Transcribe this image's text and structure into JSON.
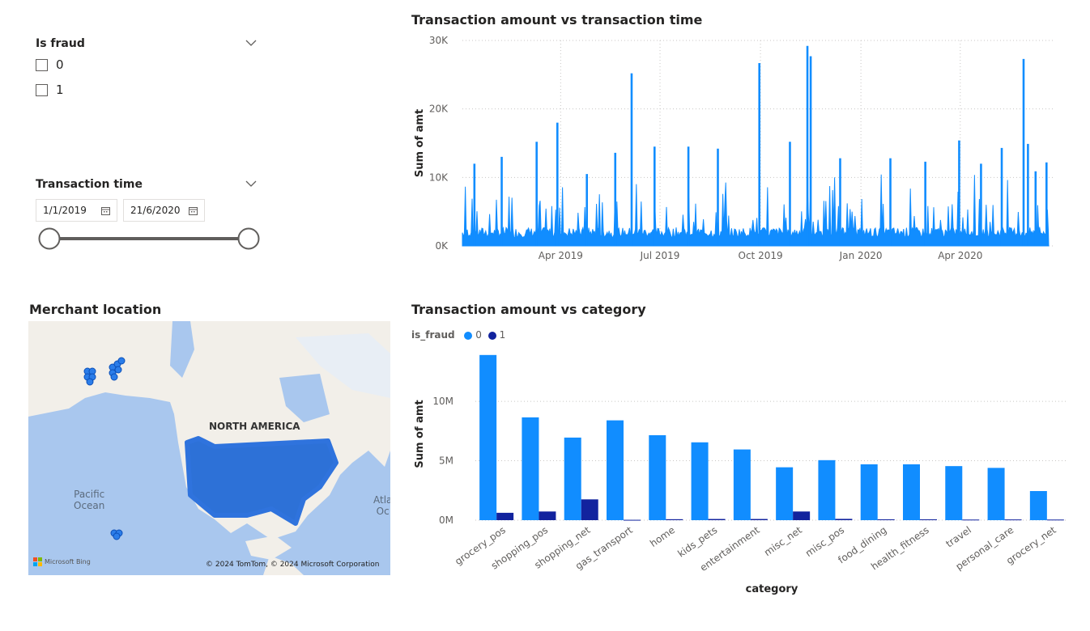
{
  "slicer_fraud": {
    "title": "Is fraud",
    "options": [
      "0",
      "1"
    ]
  },
  "slicer_time": {
    "title": "Transaction time",
    "start": "1/1/2019",
    "end": "21/6/2020"
  },
  "map": {
    "title": "Merchant location",
    "labels": {
      "continent": "NORTH AMERICA",
      "pacific_1": "Pacific",
      "pacific_2": "Ocean",
      "atlantic_1": "Atla",
      "atlantic_2": "Oc"
    },
    "brand": "Microsoft Bing",
    "copyright": "© 2024 TomTom, © 2024 Microsoft Corporation"
  },
  "chart_data": [
    {
      "type": "line",
      "title": "Transaction amount vs transaction time",
      "xlabel": "",
      "ylabel": "Sum of amt",
      "x_ticks": [
        "Apr 2019",
        "Jul 2019",
        "Oct 2019",
        "Jan 2020",
        "Apr 2020"
      ],
      "y_ticks": [
        "0K",
        "10K",
        "20K",
        "30K"
      ],
      "ylim": [
        0,
        30000
      ],
      "color": "#118dff",
      "x_range": [
        "2019-01-01",
        "2020-06-21"
      ],
      "spikes": [
        {
          "x": "2019-01-12",
          "y": 12000
        },
        {
          "x": "2019-02-06",
          "y": 13000
        },
        {
          "x": "2019-03-10",
          "y": 15200
        },
        {
          "x": "2019-03-29",
          "y": 18000
        },
        {
          "x": "2019-04-25",
          "y": 10500
        },
        {
          "x": "2019-05-21",
          "y": 13600
        },
        {
          "x": "2019-06-05",
          "y": 25200
        },
        {
          "x": "2019-06-26",
          "y": 14500
        },
        {
          "x": "2019-07-27",
          "y": 14500
        },
        {
          "x": "2019-08-23",
          "y": 14200
        },
        {
          "x": "2019-09-30",
          "y": 26700
        },
        {
          "x": "2019-10-28",
          "y": 15200
        },
        {
          "x": "2019-11-13",
          "y": 29200
        },
        {
          "x": "2019-11-16",
          "y": 27700
        },
        {
          "x": "2019-12-13",
          "y": 12800
        },
        {
          "x": "2020-01-28",
          "y": 12800
        },
        {
          "x": "2020-02-29",
          "y": 12300
        },
        {
          "x": "2020-03-31",
          "y": 15400
        },
        {
          "x": "2020-04-20",
          "y": 12000
        },
        {
          "x": "2020-05-09",
          "y": 14300
        },
        {
          "x": "2020-05-29",
          "y": 27300
        },
        {
          "x": "2020-06-02",
          "y": 14900
        },
        {
          "x": "2020-06-09",
          "y": 10900
        },
        {
          "x": "2020-06-19",
          "y": 12200
        }
      ]
    },
    {
      "type": "bar",
      "title": "Transaction amount vs category",
      "xlabel": "category",
      "ylabel": "Sum of amt",
      "legend_title": "is_fraud",
      "categories": [
        "grocery_pos",
        "shopping_pos",
        "shopping_net",
        "gas_transport",
        "home",
        "kids_pets",
        "entertainment",
        "misc_net",
        "misc_pos",
        "food_dining",
        "health_fitness",
        "travel",
        "personal_care",
        "grocery_net"
      ],
      "series": [
        {
          "name": "0",
          "color": "#118dff",
          "values": [
            13900000,
            8650000,
            6950000,
            8400000,
            7150000,
            6550000,
            5950000,
            4450000,
            5050000,
            4700000,
            4700000,
            4550000,
            4400000,
            2450000
          ]
        },
        {
          "name": "1",
          "color": "#12239e",
          "values": [
            620000,
            730000,
            1750000,
            30000,
            80000,
            100000,
            100000,
            730000,
            110000,
            70000,
            70000,
            50000,
            60000,
            50000
          ]
        }
      ],
      "y_ticks": [
        "0M",
        "5M",
        "10M"
      ],
      "ylim": [
        0,
        14500000
      ]
    }
  ]
}
